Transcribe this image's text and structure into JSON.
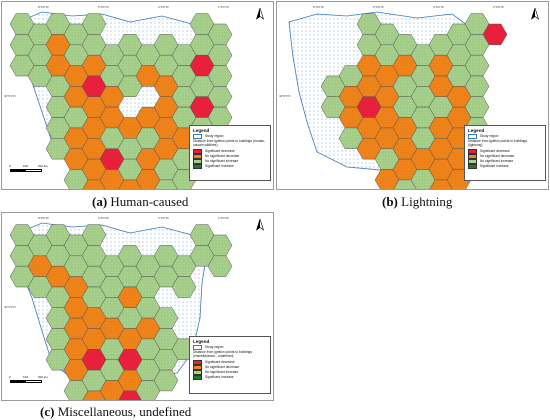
{
  "colors": {
    "significant_decrease": "#e8203c",
    "no_significant_decrease": "#f0841a",
    "no_significant_increase": "#a8d08d",
    "significant_increase": "#1f7a2e",
    "study_region": "#3a7ab8"
  },
  "legend": {
    "title": "Legend",
    "study_region": "Study region",
    "significant_decrease": "Significant decrease",
    "no_significant_decrease": "No significant decrease",
    "no_significant_increase": "No significant increase",
    "significant_increase": "Significant increase"
  },
  "panels": [
    {
      "id": "a",
      "legend_subtitle": "Distance from ignition points to buildings (human-caused wildfires)",
      "caption_letter": "(a)",
      "caption_text": " Human-caused",
      "cells": [
        "G",
        "G",
        "G",
        "G",
        "G",
        "G",
        "G",
        "G",
        "G",
        "G",
        "",
        "G",
        "G",
        "O",
        "O",
        "G",
        "G",
        "G",
        "G",
        "G",
        "G",
        "",
        "G",
        "O",
        "O",
        "O",
        "O",
        "G",
        "R",
        "G",
        "G",
        "G",
        "",
        "",
        "O",
        "R",
        "O",
        "O",
        "O",
        "G",
        "R",
        "G",
        "G",
        "",
        "",
        "G",
        "O",
        "O",
        "",
        "O",
        "O",
        "G",
        "G",
        "",
        ""
      ]
    },
    {
      "id": "b",
      "legend_subtitle": "Distance from ignition points to buildings (lightning)",
      "caption_letter": "(b)",
      "caption_text": " Lightning"
    },
    {
      "id": "c",
      "legend_subtitle": "Distance from ignition points to buildings (miscellaneous - undefined)",
      "caption_letter": "(c)",
      "caption_text": " Miscellaneous, undefined"
    }
  ],
  "scale": {
    "t0": "0",
    "t1": "100",
    "t2": "200 km"
  },
  "coords": {
    "top_a": [
      "8°0'0\"W",
      "6°0'0\"W",
      "4°0'0\"W",
      "2°0'0\"W"
    ],
    "top_b": [
      "8°0'0\"W",
      "6°0'0\"W",
      "4°0'0\"W",
      "2°0'0\"W"
    ],
    "top_c": [
      "8°0'0\"W",
      "6°0'0\"W",
      "4°0'0\"W",
      "2°0'0\"W"
    ],
    "lat_a": [
      "40°0'0\"N"
    ],
    "lat_b": [
      "40°0'0\"N"
    ],
    "lat_c": [
      "40°0'0\"N"
    ]
  }
}
